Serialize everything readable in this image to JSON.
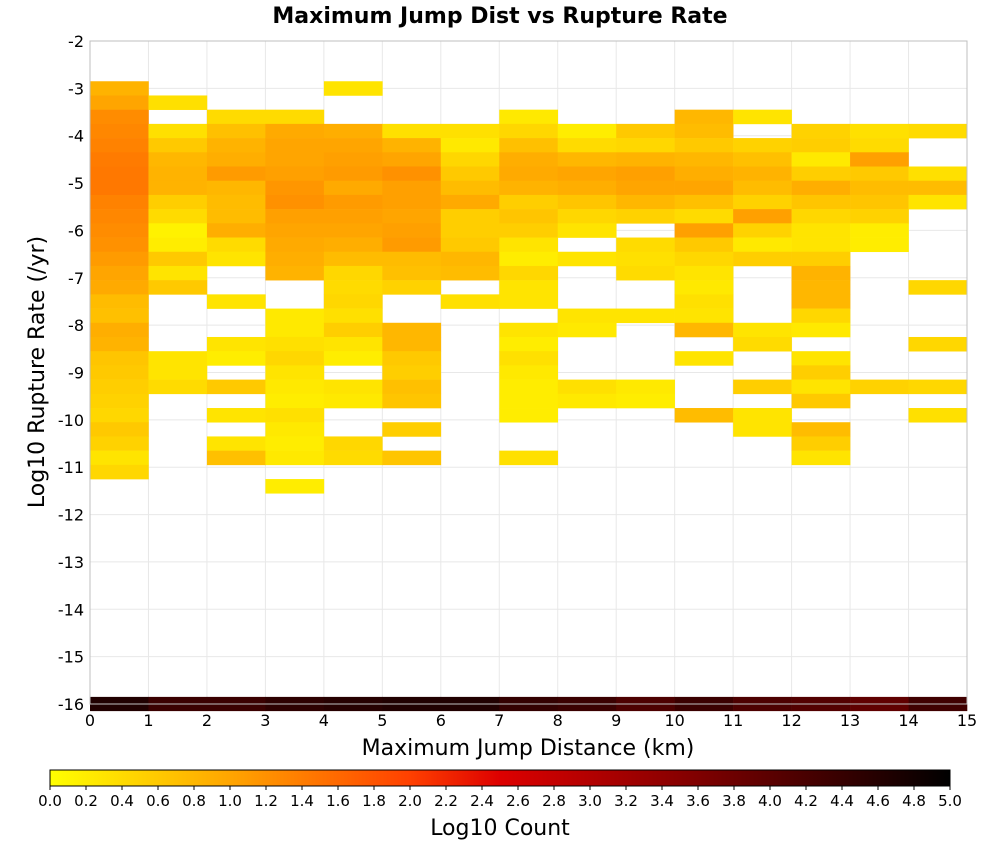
{
  "chart_data": {
    "type": "heatmap",
    "title": "Maximum Jump Dist vs Rupture Rate",
    "xlabel": "Maximum Jump Distance (km)",
    "ylabel": "Log10 Rupture Rate (/yr)",
    "xlim": [
      0,
      15
    ],
    "ylim": [
      -16,
      -2
    ],
    "x_ticks": [
      "0",
      "1",
      "2",
      "3",
      "4",
      "5",
      "6",
      "7",
      "8",
      "9",
      "10",
      "11",
      "12",
      "13",
      "14",
      "15"
    ],
    "y_ticks": [
      "-2",
      "-3",
      "-4",
      "-5",
      "-6",
      "-7",
      "-8",
      "-9",
      "-10",
      "-11",
      "-12",
      "-13",
      "-14",
      "-15",
      "-16"
    ],
    "grid": true,
    "cell_height_log10": 0.3,
    "colorbar": {
      "label": "Log10 Count",
      "range": [
        0.0,
        5.0
      ],
      "ticks": [
        "0.0",
        "0.2",
        "0.4",
        "0.6",
        "0.8",
        "1.0",
        "1.2",
        "1.4",
        "1.6",
        "1.8",
        "2.0",
        "2.2",
        "2.4",
        "2.6",
        "2.8",
        "3.0",
        "3.2",
        "3.4",
        "3.6",
        "3.8",
        "4.0",
        "4.2",
        "4.4",
        "4.6",
        "4.8",
        "5.0"
      ],
      "colors": [
        "#ffff00",
        "#ffa500",
        "#ff4000",
        "#cc0000",
        "#800000",
        "#000000"
      ]
    },
    "cells": [
      {
        "x": 0,
        "y": -3.0,
        "v": 0.85
      },
      {
        "x": 0,
        "y": -3.3,
        "v": 1.0
      },
      {
        "x": 0,
        "y": -3.6,
        "v": 1.25
      },
      {
        "x": 0,
        "y": -3.9,
        "v": 1.3
      },
      {
        "x": 0,
        "y": -4.2,
        "v": 1.35
      },
      {
        "x": 0,
        "y": -4.5,
        "v": 1.42
      },
      {
        "x": 0,
        "y": -4.8,
        "v": 1.45
      },
      {
        "x": 0,
        "y": -5.1,
        "v": 1.45
      },
      {
        "x": 0,
        "y": -5.4,
        "v": 1.35
      },
      {
        "x": 0,
        "y": -5.7,
        "v": 1.3
      },
      {
        "x": 0,
        "y": -6.0,
        "v": 1.25
      },
      {
        "x": 0,
        "y": -6.3,
        "v": 1.2
      },
      {
        "x": 0,
        "y": -6.6,
        "v": 1.1
      },
      {
        "x": 0,
        "y": -6.9,
        "v": 1.0
      },
      {
        "x": 0,
        "y": -7.2,
        "v": 0.95
      },
      {
        "x": 0,
        "y": -7.5,
        "v": 0.75
      },
      {
        "x": 0,
        "y": -7.8,
        "v": 0.7
      },
      {
        "x": 0,
        "y": -8.1,
        "v": 0.9
      },
      {
        "x": 0,
        "y": -8.4,
        "v": 0.85
      },
      {
        "x": 0,
        "y": -8.7,
        "v": 0.65
      },
      {
        "x": 0,
        "y": -9.0,
        "v": 0.6
      },
      {
        "x": 0,
        "y": -9.3,
        "v": 0.55
      },
      {
        "x": 0,
        "y": -9.6,
        "v": 0.5
      },
      {
        "x": 0,
        "y": -9.9,
        "v": 0.45
      },
      {
        "x": 0,
        "y": -10.2,
        "v": 0.6
      },
      {
        "x": 0,
        "y": -10.5,
        "v": 0.5
      },
      {
        "x": 0,
        "y": -10.8,
        "v": 0.3
      },
      {
        "x": 0,
        "y": -11.1,
        "v": 0.45
      },
      {
        "x": 1,
        "y": -3.3,
        "v": 0.35
      },
      {
        "x": 1,
        "y": -3.9,
        "v": 0.35
      },
      {
        "x": 1,
        "y": -4.2,
        "v": 0.6
      },
      {
        "x": 1,
        "y": -4.5,
        "v": 0.8
      },
      {
        "x": 1,
        "y": -4.8,
        "v": 0.85
      },
      {
        "x": 1,
        "y": -5.1,
        "v": 0.85
      },
      {
        "x": 1,
        "y": -5.4,
        "v": 0.55
      },
      {
        "x": 1,
        "y": -5.7,
        "v": 0.4
      },
      {
        "x": 1,
        "y": -6.0,
        "v": 0.15
      },
      {
        "x": 1,
        "y": -6.3,
        "v": 0.2
      },
      {
        "x": 1,
        "y": -6.6,
        "v": 0.6
      },
      {
        "x": 1,
        "y": -6.9,
        "v": 0.3
      },
      {
        "x": 1,
        "y": -7.2,
        "v": 0.6
      },
      {
        "x": 1,
        "y": -8.7,
        "v": 0.3
      },
      {
        "x": 1,
        "y": -9.0,
        "v": 0.3
      },
      {
        "x": 1,
        "y": -9.3,
        "v": 0.4
      },
      {
        "x": 2,
        "y": -3.6,
        "v": 0.4
      },
      {
        "x": 2,
        "y": -3.9,
        "v": 0.7
      },
      {
        "x": 2,
        "y": -4.2,
        "v": 0.85
      },
      {
        "x": 2,
        "y": -4.5,
        "v": 0.9
      },
      {
        "x": 2,
        "y": -4.8,
        "v": 1.1
      },
      {
        "x": 2,
        "y": -5.1,
        "v": 0.8
      },
      {
        "x": 2,
        "y": -5.4,
        "v": 0.75
      },
      {
        "x": 2,
        "y": -5.7,
        "v": 0.75
      },
      {
        "x": 2,
        "y": -6.0,
        "v": 0.9
      },
      {
        "x": 2,
        "y": -6.3,
        "v": 0.4
      },
      {
        "x": 2,
        "y": -6.6,
        "v": 0.3
      },
      {
        "x": 2,
        "y": -7.5,
        "v": 0.3
      },
      {
        "x": 2,
        "y": -8.4,
        "v": 0.3
      },
      {
        "x": 2,
        "y": -8.7,
        "v": 0.2
      },
      {
        "x": 2,
        "y": -9.3,
        "v": 0.6
      },
      {
        "x": 2,
        "y": -9.9,
        "v": 0.3
      },
      {
        "x": 2,
        "y": -10.5,
        "v": 0.3
      },
      {
        "x": 2,
        "y": -10.8,
        "v": 0.7
      },
      {
        "x": 3,
        "y": -3.6,
        "v": 0.4
      },
      {
        "x": 3,
        "y": -3.9,
        "v": 0.95
      },
      {
        "x": 3,
        "y": -4.2,
        "v": 1.0
      },
      {
        "x": 3,
        "y": -4.5,
        "v": 1.0
      },
      {
        "x": 3,
        "y": -4.8,
        "v": 1.05
      },
      {
        "x": 3,
        "y": -5.1,
        "v": 1.15
      },
      {
        "x": 3,
        "y": -5.4,
        "v": 1.2
      },
      {
        "x": 3,
        "y": -5.7,
        "v": 1.05
      },
      {
        "x": 3,
        "y": -6.0,
        "v": 1.0
      },
      {
        "x": 3,
        "y": -6.3,
        "v": 0.95
      },
      {
        "x": 3,
        "y": -6.6,
        "v": 0.9
      },
      {
        "x": 3,
        "y": -6.9,
        "v": 0.85
      },
      {
        "x": 3,
        "y": -7.8,
        "v": 0.25
      },
      {
        "x": 3,
        "y": -8.1,
        "v": 0.25
      },
      {
        "x": 3,
        "y": -8.4,
        "v": 0.35
      },
      {
        "x": 3,
        "y": -8.7,
        "v": 0.45
      },
      {
        "x": 3,
        "y": -9.0,
        "v": 0.3
      },
      {
        "x": 3,
        "y": -9.3,
        "v": 0.25
      },
      {
        "x": 3,
        "y": -9.6,
        "v": 0.2
      },
      {
        "x": 3,
        "y": -9.9,
        "v": 0.35
      },
      {
        "x": 3,
        "y": -10.2,
        "v": 0.25
      },
      {
        "x": 3,
        "y": -10.5,
        "v": 0.2
      },
      {
        "x": 3,
        "y": -10.8,
        "v": 0.25
      },
      {
        "x": 3,
        "y": -11.4,
        "v": 0.2
      },
      {
        "x": 4,
        "y": -3.0,
        "v": 0.3
      },
      {
        "x": 4,
        "y": -3.9,
        "v": 0.9
      },
      {
        "x": 4,
        "y": -4.2,
        "v": 1.0
      },
      {
        "x": 4,
        "y": -4.5,
        "v": 1.05
      },
      {
        "x": 4,
        "y": -4.8,
        "v": 1.1
      },
      {
        "x": 4,
        "y": -5.1,
        "v": 0.95
      },
      {
        "x": 4,
        "y": -5.4,
        "v": 1.1
      },
      {
        "x": 4,
        "y": -5.7,
        "v": 1.05
      },
      {
        "x": 4,
        "y": -6.0,
        "v": 1.0
      },
      {
        "x": 4,
        "y": -6.3,
        "v": 0.9
      },
      {
        "x": 4,
        "y": -6.6,
        "v": 0.75
      },
      {
        "x": 4,
        "y": -6.9,
        "v": 0.45
      },
      {
        "x": 4,
        "y": -7.2,
        "v": 0.4
      },
      {
        "x": 4,
        "y": -7.5,
        "v": 0.45
      },
      {
        "x": 4,
        "y": -7.8,
        "v": 0.35
      },
      {
        "x": 4,
        "y": -8.1,
        "v": 0.55
      },
      {
        "x": 4,
        "y": -8.4,
        "v": 0.3
      },
      {
        "x": 4,
        "y": -8.7,
        "v": 0.2
      },
      {
        "x": 4,
        "y": -9.3,
        "v": 0.3
      },
      {
        "x": 4,
        "y": -9.6,
        "v": 0.25
      },
      {
        "x": 4,
        "y": -10.5,
        "v": 0.45
      },
      {
        "x": 4,
        "y": -10.8,
        "v": 0.4
      },
      {
        "x": 5,
        "y": -3.9,
        "v": 0.35
      },
      {
        "x": 5,
        "y": -4.2,
        "v": 0.85
      },
      {
        "x": 5,
        "y": -4.5,
        "v": 1.0
      },
      {
        "x": 5,
        "y": -4.8,
        "v": 1.2
      },
      {
        "x": 5,
        "y": -5.1,
        "v": 1.05
      },
      {
        "x": 5,
        "y": -5.4,
        "v": 1.05
      },
      {
        "x": 5,
        "y": -5.7,
        "v": 1.0
      },
      {
        "x": 5,
        "y": -6.0,
        "v": 1.05
      },
      {
        "x": 5,
        "y": -6.3,
        "v": 1.1
      },
      {
        "x": 5,
        "y": -6.6,
        "v": 0.75
      },
      {
        "x": 5,
        "y": -6.9,
        "v": 0.7
      },
      {
        "x": 5,
        "y": -7.2,
        "v": 0.5
      },
      {
        "x": 5,
        "y": -8.1,
        "v": 0.8
      },
      {
        "x": 5,
        "y": -8.4,
        "v": 0.8
      },
      {
        "x": 5,
        "y": -8.7,
        "v": 0.6
      },
      {
        "x": 5,
        "y": -9.0,
        "v": 0.55
      },
      {
        "x": 5,
        "y": -9.3,
        "v": 0.7
      },
      {
        "x": 5,
        "y": -9.6,
        "v": 0.65
      },
      {
        "x": 5,
        "y": -10.2,
        "v": 0.55
      },
      {
        "x": 5,
        "y": -10.8,
        "v": 0.65
      },
      {
        "x": 6,
        "y": -3.9,
        "v": 0.35
      },
      {
        "x": 6,
        "y": -4.2,
        "v": 0.25
      },
      {
        "x": 6,
        "y": -4.5,
        "v": 0.45
      },
      {
        "x": 6,
        "y": -4.8,
        "v": 0.6
      },
      {
        "x": 6,
        "y": -5.1,
        "v": 0.75
      },
      {
        "x": 6,
        "y": -5.4,
        "v": 0.95
      },
      {
        "x": 6,
        "y": -5.7,
        "v": 0.55
      },
      {
        "x": 6,
        "y": -6.0,
        "v": 0.55
      },
      {
        "x": 6,
        "y": -6.3,
        "v": 0.6
      },
      {
        "x": 6,
        "y": -6.6,
        "v": 0.8
      },
      {
        "x": 6,
        "y": -6.9,
        "v": 0.75
      },
      {
        "x": 6,
        "y": -7.5,
        "v": 0.35
      },
      {
        "x": 7,
        "y": -3.6,
        "v": 0.25
      },
      {
        "x": 7,
        "y": -3.9,
        "v": 0.45
      },
      {
        "x": 7,
        "y": -4.2,
        "v": 0.7
      },
      {
        "x": 7,
        "y": -4.5,
        "v": 0.9
      },
      {
        "x": 7,
        "y": -4.8,
        "v": 0.95
      },
      {
        "x": 7,
        "y": -5.1,
        "v": 0.85
      },
      {
        "x": 7,
        "y": -5.4,
        "v": 0.55
      },
      {
        "x": 7,
        "y": -5.7,
        "v": 0.65
      },
      {
        "x": 7,
        "y": -6.0,
        "v": 0.55
      },
      {
        "x": 7,
        "y": -6.3,
        "v": 0.3
      },
      {
        "x": 7,
        "y": -6.6,
        "v": 0.2
      },
      {
        "x": 7,
        "y": -6.9,
        "v": 0.45
      },
      {
        "x": 7,
        "y": -7.2,
        "v": 0.3
      },
      {
        "x": 7,
        "y": -7.5,
        "v": 0.3
      },
      {
        "x": 7,
        "y": -8.1,
        "v": 0.3
      },
      {
        "x": 7,
        "y": -8.4,
        "v": 0.2
      },
      {
        "x": 7,
        "y": -8.7,
        "v": 0.35
      },
      {
        "x": 7,
        "y": -9.0,
        "v": 0.25
      },
      {
        "x": 7,
        "y": -9.3,
        "v": 0.2
      },
      {
        "x": 7,
        "y": -9.6,
        "v": 0.2
      },
      {
        "x": 7,
        "y": -9.9,
        "v": 0.2
      },
      {
        "x": 7,
        "y": -10.8,
        "v": 0.35
      },
      {
        "x": 8,
        "y": -3.9,
        "v": 0.2
      },
      {
        "x": 8,
        "y": -4.2,
        "v": 0.4
      },
      {
        "x": 8,
        "y": -4.5,
        "v": 0.8
      },
      {
        "x": 8,
        "y": -4.8,
        "v": 1.0
      },
      {
        "x": 8,
        "y": -5.1,
        "v": 0.9
      },
      {
        "x": 8,
        "y": -5.4,
        "v": 0.65
      },
      {
        "x": 8,
        "y": -5.7,
        "v": 0.45
      },
      {
        "x": 8,
        "y": -6.0,
        "v": 0.3
      },
      {
        "x": 8,
        "y": -6.6,
        "v": 0.3
      },
      {
        "x": 8,
        "y": -7.8,
        "v": 0.3
      },
      {
        "x": 8,
        "y": -8.1,
        "v": 0.25
      },
      {
        "x": 8,
        "y": -9.3,
        "v": 0.35
      },
      {
        "x": 8,
        "y": -9.6,
        "v": 0.25
      },
      {
        "x": 9,
        "y": -3.9,
        "v": 0.6
      },
      {
        "x": 9,
        "y": -4.2,
        "v": 0.45
      },
      {
        "x": 9,
        "y": -4.5,
        "v": 0.85
      },
      {
        "x": 9,
        "y": -4.8,
        "v": 1.05
      },
      {
        "x": 9,
        "y": -5.1,
        "v": 1.0
      },
      {
        "x": 9,
        "y": -5.4,
        "v": 0.8
      },
      {
        "x": 9,
        "y": -5.7,
        "v": 0.5
      },
      {
        "x": 9,
        "y": -6.3,
        "v": 0.4
      },
      {
        "x": 9,
        "y": -6.6,
        "v": 0.35
      },
      {
        "x": 9,
        "y": -6.9,
        "v": 0.4
      },
      {
        "x": 9,
        "y": -7.8,
        "v": 0.3
      },
      {
        "x": 9,
        "y": -9.3,
        "v": 0.25
      },
      {
        "x": 9,
        "y": -9.6,
        "v": 0.2
      },
      {
        "x": 10,
        "y": -3.6,
        "v": 0.8
      },
      {
        "x": 10,
        "y": -3.9,
        "v": 0.75
      },
      {
        "x": 10,
        "y": -4.2,
        "v": 0.6
      },
      {
        "x": 10,
        "y": -4.5,
        "v": 0.8
      },
      {
        "x": 10,
        "y": -4.8,
        "v": 0.9
      },
      {
        "x": 10,
        "y": -5.1,
        "v": 1.0
      },
      {
        "x": 10,
        "y": -5.4,
        "v": 0.7
      },
      {
        "x": 10,
        "y": -5.7,
        "v": 0.4
      },
      {
        "x": 10,
        "y": -6.0,
        "v": 1.05
      },
      {
        "x": 10,
        "y": -6.3,
        "v": 0.6
      },
      {
        "x": 10,
        "y": -6.6,
        "v": 0.45
      },
      {
        "x": 10,
        "y": -6.9,
        "v": 0.3
      },
      {
        "x": 10,
        "y": -7.2,
        "v": 0.25
      },
      {
        "x": 10,
        "y": -7.5,
        "v": 0.35
      },
      {
        "x": 10,
        "y": -7.8,
        "v": 0.3
      },
      {
        "x": 10,
        "y": -8.1,
        "v": 0.8
      },
      {
        "x": 10,
        "y": -8.7,
        "v": 0.3
      },
      {
        "x": 10,
        "y": -9.9,
        "v": 0.75
      },
      {
        "x": 11,
        "y": -3.6,
        "v": 0.3
      },
      {
        "x": 11,
        "y": -4.2,
        "v": 0.5
      },
      {
        "x": 11,
        "y": -4.5,
        "v": 0.7
      },
      {
        "x": 11,
        "y": -4.8,
        "v": 0.85
      },
      {
        "x": 11,
        "y": -5.1,
        "v": 0.75
      },
      {
        "x": 11,
        "y": -5.4,
        "v": 0.5
      },
      {
        "x": 11,
        "y": -5.7,
        "v": 1.05
      },
      {
        "x": 11,
        "y": -6.0,
        "v": 0.5
      },
      {
        "x": 11,
        "y": -6.3,
        "v": 0.25
      },
      {
        "x": 11,
        "y": -6.6,
        "v": 0.55
      },
      {
        "x": 11,
        "y": -8.1,
        "v": 0.3
      },
      {
        "x": 11,
        "y": -8.4,
        "v": 0.4
      },
      {
        "x": 11,
        "y": -9.3,
        "v": 0.55
      },
      {
        "x": 11,
        "y": -9.9,
        "v": 0.3
      },
      {
        "x": 11,
        "y": -10.2,
        "v": 0.3
      },
      {
        "x": 12,
        "y": -3.9,
        "v": 0.5
      },
      {
        "x": 12,
        "y": -4.2,
        "v": 0.55
      },
      {
        "x": 12,
        "y": -4.5,
        "v": 0.25
      },
      {
        "x": 12,
        "y": -4.8,
        "v": 0.55
      },
      {
        "x": 12,
        "y": -5.1,
        "v": 0.9
      },
      {
        "x": 12,
        "y": -5.4,
        "v": 0.65
      },
      {
        "x": 12,
        "y": -5.7,
        "v": 0.45
      },
      {
        "x": 12,
        "y": -6.0,
        "v": 0.3
      },
      {
        "x": 12,
        "y": -6.3,
        "v": 0.3
      },
      {
        "x": 12,
        "y": -6.6,
        "v": 0.55
      },
      {
        "x": 12,
        "y": -6.9,
        "v": 0.85
      },
      {
        "x": 12,
        "y": -7.2,
        "v": 0.8
      },
      {
        "x": 12,
        "y": -7.5,
        "v": 0.8
      },
      {
        "x": 12,
        "y": -7.8,
        "v": 0.45
      },
      {
        "x": 12,
        "y": -8.1,
        "v": 0.25
      },
      {
        "x": 12,
        "y": -8.7,
        "v": 0.3
      },
      {
        "x": 12,
        "y": -9.0,
        "v": 0.55
      },
      {
        "x": 12,
        "y": -9.3,
        "v": 0.3
      },
      {
        "x": 12,
        "y": -9.6,
        "v": 0.6
      },
      {
        "x": 12,
        "y": -10.2,
        "v": 0.75
      },
      {
        "x": 12,
        "y": -10.5,
        "v": 0.55
      },
      {
        "x": 12,
        "y": -10.8,
        "v": 0.3
      },
      {
        "x": 13,
        "y": -3.9,
        "v": 0.35
      },
      {
        "x": 13,
        "y": -4.2,
        "v": 0.4
      },
      {
        "x": 13,
        "y": -4.5,
        "v": 1.05
      },
      {
        "x": 13,
        "y": -4.8,
        "v": 0.6
      },
      {
        "x": 13,
        "y": -5.1,
        "v": 0.75
      },
      {
        "x": 13,
        "y": -5.4,
        "v": 0.65
      },
      {
        "x": 13,
        "y": -5.7,
        "v": 0.5
      },
      {
        "x": 13,
        "y": -6.0,
        "v": 0.2
      },
      {
        "x": 13,
        "y": -6.3,
        "v": 0.2
      },
      {
        "x": 13,
        "y": -9.3,
        "v": 0.5
      },
      {
        "x": 14,
        "y": -3.9,
        "v": 0.4
      },
      {
        "x": 14,
        "y": -4.8,
        "v": 0.35
      },
      {
        "x": 14,
        "y": -5.1,
        "v": 0.75
      },
      {
        "x": 14,
        "y": -5.4,
        "v": 0.3
      },
      {
        "x": 14,
        "y": -7.2,
        "v": 0.45
      },
      {
        "x": 14,
        "y": -8.4,
        "v": 0.45
      },
      {
        "x": 14,
        "y": -9.3,
        "v": 0.45
      },
      {
        "x": 14,
        "y": -9.9,
        "v": 0.35
      }
    ],
    "bottom_row": {
      "y": -16.0,
      "values": [
        4.75,
        4.55,
        4.55,
        4.65,
        4.7,
        4.75,
        4.75,
        4.6,
        4.55,
        4.4,
        4.55,
        4.4,
        4.35,
        4.25,
        4.5
      ]
    }
  }
}
